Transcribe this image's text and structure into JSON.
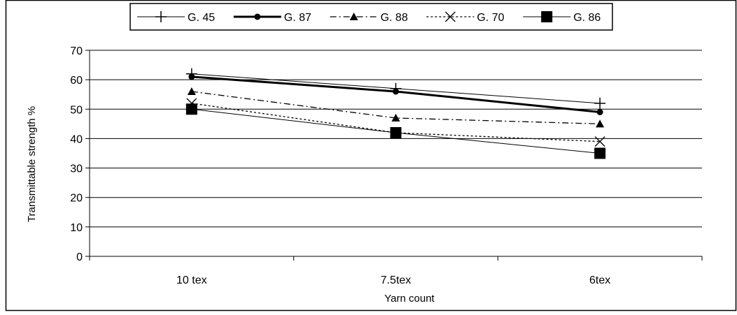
{
  "chart_data": {
    "type": "line",
    "title": "",
    "xlabel": "Yarn count",
    "ylabel": "Transmittable strength %",
    "categories": [
      "10 tex",
      "7.5tex",
      "6tex"
    ],
    "ylim": [
      0,
      70
    ],
    "yticks": [
      0,
      10,
      20,
      30,
      40,
      50,
      60,
      70
    ],
    "grid": true,
    "legend_position": "top",
    "series": [
      {
        "name": "G. 45",
        "values": [
          62,
          57,
          52
        ],
        "marker": "plus",
        "dash": "solid",
        "width": "thin"
      },
      {
        "name": "G. 87",
        "values": [
          61,
          56,
          49
        ],
        "marker": "circle",
        "dash": "solid",
        "width": "thick"
      },
      {
        "name": "G. 88",
        "values": [
          56,
          47,
          45
        ],
        "marker": "triangle",
        "dash": "dashdot",
        "width": "normal"
      },
      {
        "name": "G. 70",
        "values": [
          52,
          42,
          39
        ],
        "marker": "x",
        "dash": "dotted",
        "width": "normal"
      },
      {
        "name": "G. 86",
        "values": [
          50,
          42,
          35
        ],
        "marker": "square",
        "dash": "solid",
        "width": "thin"
      }
    ]
  }
}
